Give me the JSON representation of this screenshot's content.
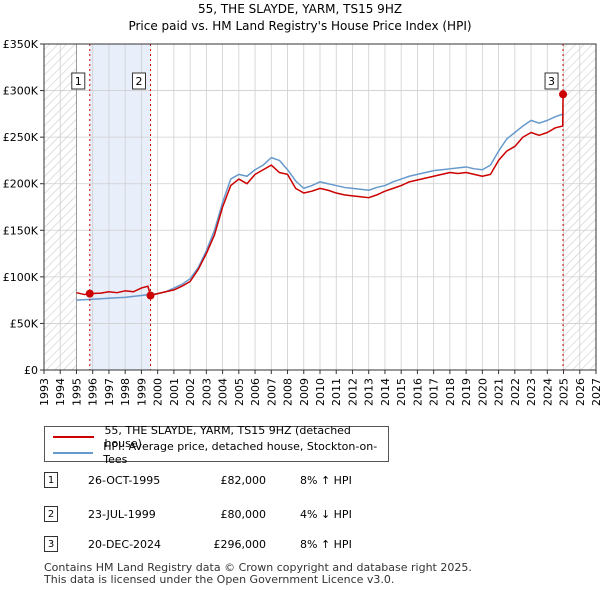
{
  "chart_data": {
    "type": "line",
    "title": "55, THE SLAYDE, YARM, TS15 9HZ",
    "subtitle": "Price paid vs. HM Land Registry's House Price Index (HPI)",
    "xlabel": "",
    "ylabel": "",
    "xlim": [
      1993,
      2027
    ],
    "ylim": [
      0,
      350000
    ],
    "x_ticks": [
      "1993",
      "1994",
      "1995",
      "1996",
      "1997",
      "1998",
      "1999",
      "2000",
      "2001",
      "2002",
      "2003",
      "2004",
      "2005",
      "2006",
      "2007",
      "2008",
      "2009",
      "2010",
      "2011",
      "2012",
      "2013",
      "2014",
      "2015",
      "2016",
      "2017",
      "2018",
      "2019",
      "2020",
      "2021",
      "2022",
      "2023",
      "2024",
      "2025",
      "2026",
      "2027"
    ],
    "y_ticks": [
      {
        "value": 0,
        "label": "£0"
      },
      {
        "value": 50000,
        "label": "£50K"
      },
      {
        "value": 100000,
        "label": "£100K"
      },
      {
        "value": 150000,
        "label": "£150K"
      },
      {
        "value": 200000,
        "label": "£200K"
      },
      {
        "value": 250000,
        "label": "£250K"
      },
      {
        "value": 300000,
        "label": "£300K"
      },
      {
        "value": 350000,
        "label": "£350K"
      }
    ],
    "hatched_ranges": [
      [
        1993,
        1995.0
      ],
      [
        2025.0,
        2027
      ]
    ],
    "shaded_ranges": [
      [
        1995.82,
        1999.56
      ]
    ],
    "series": [
      {
        "name": "55, THE SLAYDE, YARM, TS15 9HZ (detached house)",
        "color": "#cc0000",
        "x": [
          1995.0,
          1995.5,
          1995.82,
          1996.5,
          1997.0,
          1997.5,
          1998.0,
          1998.5,
          1999.0,
          1999.4,
          1999.56,
          2000.0,
          2000.5,
          2001.0,
          2001.5,
          2002.0,
          2002.5,
          2003.0,
          2003.5,
          2004.0,
          2004.5,
          2005.0,
          2005.5,
          2006.0,
          2006.5,
          2007.0,
          2007.5,
          2008.0,
          2008.5,
          2009.0,
          2009.5,
          2010.0,
          2010.5,
          2011.0,
          2011.5,
          2012.0,
          2012.5,
          2013.0,
          2013.5,
          2014.0,
          2014.5,
          2015.0,
          2015.5,
          2016.0,
          2016.5,
          2017.0,
          2017.5,
          2018.0,
          2018.5,
          2019.0,
          2019.5,
          2020.0,
          2020.5,
          2021.0,
          2021.5,
          2022.0,
          2022.5,
          2023.0,
          2023.5,
          2024.0,
          2024.5,
          2024.95,
          2024.97,
          2025.0
        ],
        "y": [
          83000,
          81000,
          82000,
          82500,
          84000,
          83000,
          85000,
          84000,
          88000,
          90000,
          80000,
          82000,
          84000,
          86000,
          90000,
          95000,
          108000,
          125000,
          145000,
          175000,
          198000,
          205000,
          200000,
          210000,
          215000,
          220000,
          212000,
          210000,
          195000,
          190000,
          192000,
          195000,
          193000,
          190000,
          188000,
          187000,
          186000,
          185000,
          188000,
          192000,
          195000,
          198000,
          202000,
          204000,
          206000,
          208000,
          210000,
          212000,
          211000,
          212000,
          210000,
          208000,
          210000,
          225000,
          235000,
          240000,
          250000,
          255000,
          252000,
          255000,
          260000,
          262000,
          296000,
          298000
        ]
      },
      {
        "name": "HPI: Average price, detached house, Stockton-on-Tees",
        "color": "#6699cc",
        "x": [
          1995.0,
          1995.5,
          1996.0,
          1996.5,
          1997.0,
          1997.5,
          1998.0,
          1998.5,
          1999.0,
          1999.5,
          2000.0,
          2000.5,
          2001.0,
          2001.5,
          2002.0,
          2002.5,
          2003.0,
          2003.5,
          2004.0,
          2004.5,
          2005.0,
          2005.5,
          2006.0,
          2006.5,
          2007.0,
          2007.5,
          2008.0,
          2008.5,
          2009.0,
          2009.5,
          2010.0,
          2010.5,
          2011.0,
          2011.5,
          2012.0,
          2012.5,
          2013.0,
          2013.5,
          2014.0,
          2014.5,
          2015.0,
          2015.5,
          2016.0,
          2016.5,
          2017.0,
          2017.5,
          2018.0,
          2018.5,
          2019.0,
          2019.5,
          2020.0,
          2020.5,
          2021.0,
          2021.5,
          2022.0,
          2022.5,
          2023.0,
          2023.5,
          2024.0,
          2024.5,
          2025.0
        ],
        "y": [
          75000,
          75500,
          76000,
          76500,
          77000,
          77500,
          78000,
          79000,
          80000,
          81000,
          82000,
          84000,
          88000,
          92000,
          98000,
          110000,
          128000,
          150000,
          180000,
          205000,
          210000,
          208000,
          215000,
          220000,
          228000,
          225000,
          215000,
          203000,
          195000,
          198000,
          202000,
          200000,
          198000,
          196000,
          195000,
          194000,
          193000,
          196000,
          198000,
          202000,
          205000,
          208000,
          210000,
          212000,
          214000,
          215000,
          216000,
          217000,
          218000,
          216000,
          215000,
          220000,
          235000,
          248000,
          255000,
          262000,
          268000,
          265000,
          268000,
          272000,
          275000
        ]
      }
    ],
    "markers": [
      {
        "label": "1",
        "x": 1995.82,
        "y": 82000
      },
      {
        "label": "2",
        "x": 1999.56,
        "y": 80000
      },
      {
        "label": "3",
        "x": 2024.97,
        "y": 296000
      }
    ]
  },
  "legend": {
    "red_label": "55, THE SLAYDE, YARM, TS15 9HZ (detached house)",
    "blue_label": "HPI: Average price, detached house, Stockton-on-Tees",
    "red_color": "#cc0000",
    "blue_color": "#6699cc"
  },
  "sales": [
    {
      "num": "1",
      "date": "26-OCT-1995",
      "price": "£82,000",
      "hpi": "8% ↑ HPI"
    },
    {
      "num": "2",
      "date": "23-JUL-1999",
      "price": "£80,000",
      "hpi": "4% ↓ HPI"
    },
    {
      "num": "3",
      "date": "20-DEC-2024",
      "price": "£296,000",
      "hpi": "8% ↑ HPI"
    }
  ],
  "footer": {
    "line1": "Contains HM Land Registry data © Crown copyright and database right 2025.",
    "line2": "This data is licensed under the Open Government Licence v3.0."
  }
}
